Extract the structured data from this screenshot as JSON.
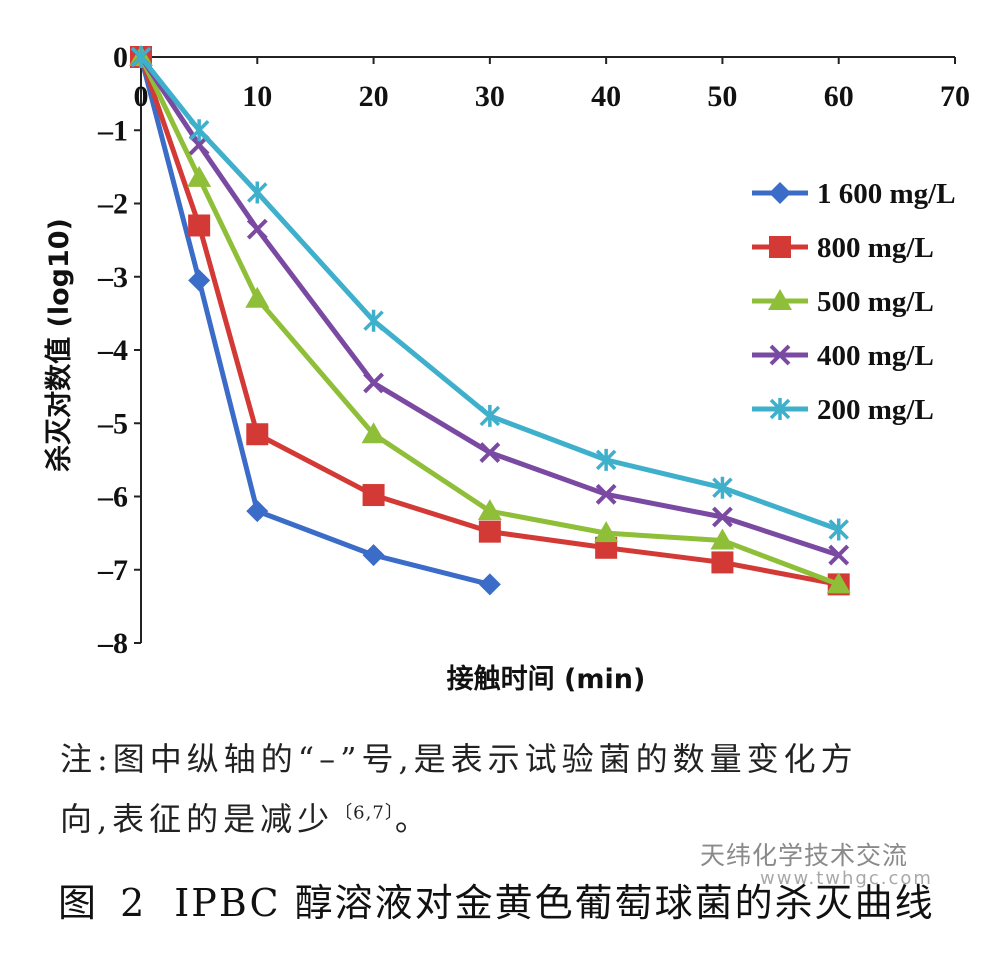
{
  "chart_data": {
    "type": "line",
    "xlabel": "接触时间 (min)",
    "ylabel": "杀灭对数值 (log10)",
    "xlim": [
      0,
      70
    ],
    "ylim": [
      -8,
      0
    ],
    "x_ticks": [
      "0",
      "10",
      "20",
      "30",
      "40",
      "50",
      "60",
      "70"
    ],
    "y_ticks": [
      "0",
      "–1",
      "–2",
      "–3",
      "–4",
      "–5",
      "–6",
      "–7",
      "–8"
    ],
    "legend_position": "right",
    "series": [
      {
        "name": "1 600 mg/L",
        "color": "#3a6cc8",
        "marker": "diamond",
        "x": [
          0,
          5,
          10,
          20,
          30
        ],
        "y": [
          0,
          -3.05,
          -6.2,
          -6.8,
          -7.2
        ]
      },
      {
        "name": "800 mg/L",
        "color": "#d33a36",
        "marker": "square",
        "x": [
          0,
          5,
          10,
          20,
          30,
          40,
          50,
          60
        ],
        "y": [
          0,
          -2.3,
          -5.15,
          -5.98,
          -6.48,
          -6.7,
          -6.9,
          -7.2
        ]
      },
      {
        "name": "500 mg/L",
        "color": "#8fbf38",
        "marker": "triangle",
        "x": [
          0,
          5,
          10,
          20,
          30,
          40,
          50,
          60
        ],
        "y": [
          0,
          -1.65,
          -3.3,
          -5.15,
          -6.2,
          -6.5,
          -6.6,
          -7.2
        ]
      },
      {
        "name": "400 mg/L",
        "color": "#7a4aa2",
        "marker": "x",
        "x": [
          0,
          5,
          10,
          20,
          30,
          40,
          50,
          60
        ],
        "y": [
          0,
          -1.2,
          -2.35,
          -4.45,
          -5.4,
          -5.97,
          -6.28,
          -6.8
        ]
      },
      {
        "name": "200 mg/L",
        "color": "#3fb0cc",
        "marker": "asterisk",
        "x": [
          0,
          5,
          10,
          20,
          30,
          40,
          50,
          60
        ],
        "y": [
          0,
          -1.0,
          -1.85,
          -3.6,
          -4.9,
          -5.5,
          -5.88,
          -6.45
        ]
      }
    ]
  },
  "note": {
    "line1": "注:图中纵轴的“–”号,是表示试验菌的数量变化方",
    "line2": "向,表征的是减少",
    "ref": "〔6,7〕",
    "line2_end": "。"
  },
  "watermark": {
    "cn": "天纬化学技术交流",
    "url": "www.twhgc.com"
  },
  "caption": {
    "fig_no": "图 2",
    "text": "IPBC 醇溶液对金黄色葡萄球菌的杀灭曲线"
  }
}
